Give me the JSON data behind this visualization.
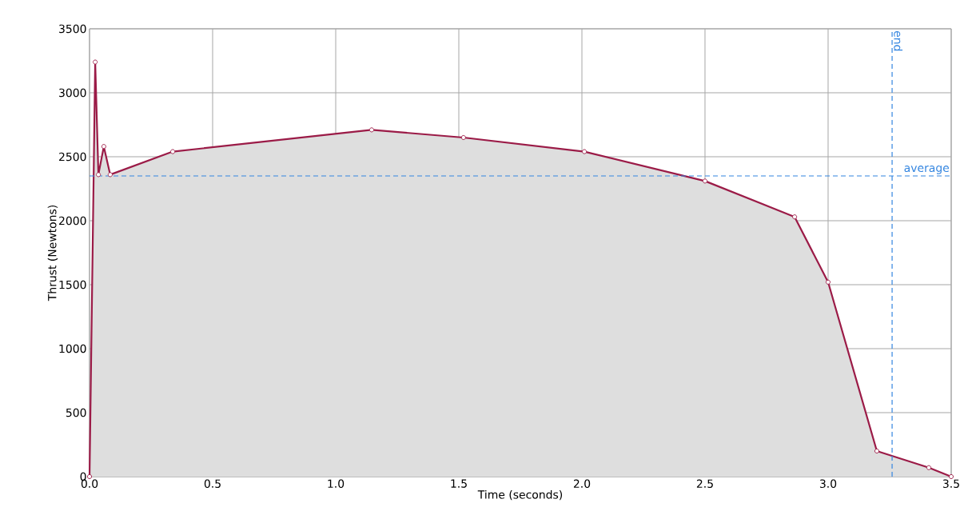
{
  "chart_data": {
    "type": "area",
    "xlabel": "Time (seconds)",
    "ylabel": "Thrust (Newtons)",
    "x": [
      0,
      0.023,
      0.036,
      0.058,
      0.084,
      0.338,
      1.146,
      1.519,
      2.01,
      2.5,
      2.864,
      3.0,
      3.198,
      3.409,
      3.5
    ],
    "values": [
      0,
      3240,
      2360,
      2580,
      2360,
      2540,
      2710,
      2650,
      2540,
      2310,
      2030,
      1520,
      200,
      70,
      0
    ],
    "color": "#9b1b47",
    "marker": "circle",
    "grid": true,
    "xlim": [
      0,
      3.5
    ],
    "xticks": [
      {
        "value": 0,
        "label": "0.0"
      },
      {
        "value": 0.5,
        "label": "0.5"
      },
      {
        "value": 1,
        "label": "1.0"
      },
      {
        "value": 1.5,
        "label": "1.5"
      },
      {
        "value": 2,
        "label": "2.0"
      },
      {
        "value": 2.5,
        "label": "2.5"
      },
      {
        "value": 3,
        "label": "3.0"
      },
      {
        "value": 3.5,
        "label": "3.5"
      }
    ],
    "ylim": [
      0,
      3500
    ],
    "yticks": [
      0,
      500,
      1000,
      1500,
      2000,
      2500,
      3000,
      3500
    ],
    "ref_lines": [
      {
        "axis": "y",
        "value": 2350,
        "label": "average",
        "color": "#3385e0",
        "line_style": "dashed"
      },
      {
        "axis": "x",
        "value": 3.26,
        "label": "end",
        "color": "#3385e0",
        "line_style": "dashed"
      }
    ]
  }
}
